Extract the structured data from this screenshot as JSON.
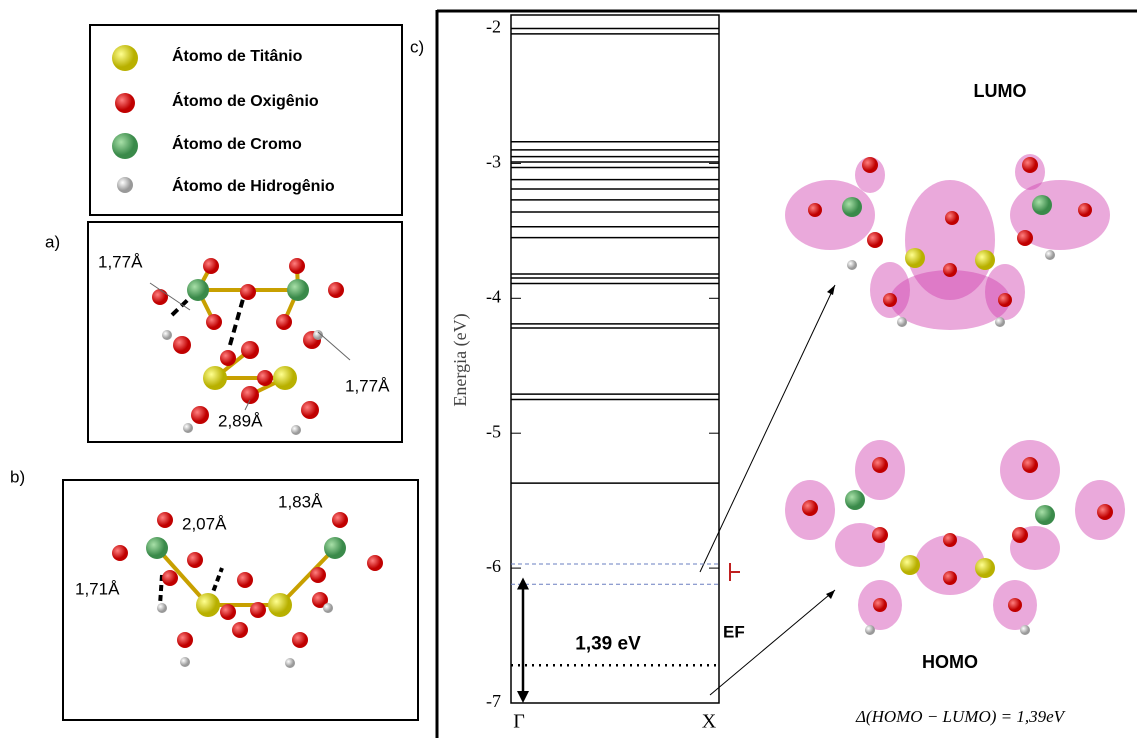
{
  "legend": {
    "items": [
      "Átomo de Titânio",
      "Átomo de Oxigênio",
      "Átomo de Cromo",
      "Átomo de Hidrogênio"
    ]
  },
  "panel_a": {
    "label": "a)",
    "distances": [
      "1,77Å",
      "1,77Å",
      "2,89Å"
    ]
  },
  "panel_b": {
    "label": "b)",
    "distances": [
      "2,07Å",
      "1,83Å",
      "1,71Å"
    ]
  },
  "panel_c": {
    "label": "c)",
    "lumo": "LUMO",
    "homo": "HOMO",
    "gap_formula": "Δ(HOMO − LUMO) = 1,39eV"
  },
  "chart_data": {
    "type": "levels",
    "ylabel": "Energia (eV)",
    "categories": [
      "Γ",
      "X"
    ],
    "ylim": [
      -7,
      -1.9
    ],
    "yticks": [
      -2,
      -3,
      -4,
      -5,
      -6,
      -7
    ],
    "levels": [
      -2.0,
      -2.04,
      -2.84,
      -2.9,
      -2.95,
      -2.99,
      -3.03,
      -3.12,
      -3.19,
      -3.27,
      -3.36,
      -3.47,
      -3.55,
      -3.82,
      -3.85,
      -3.89,
      -4.19,
      -4.22,
      -4.71,
      -4.75,
      -5.37
    ],
    "frontier_levels": [
      -5.97,
      -6.12
    ],
    "frontier_color": "#6a7fc0",
    "fermi_level": -6.72,
    "fermi_label": "EF",
    "gap_arrow": [
      -6.07,
      -7
    ],
    "gap_label": "1,39 eV"
  }
}
